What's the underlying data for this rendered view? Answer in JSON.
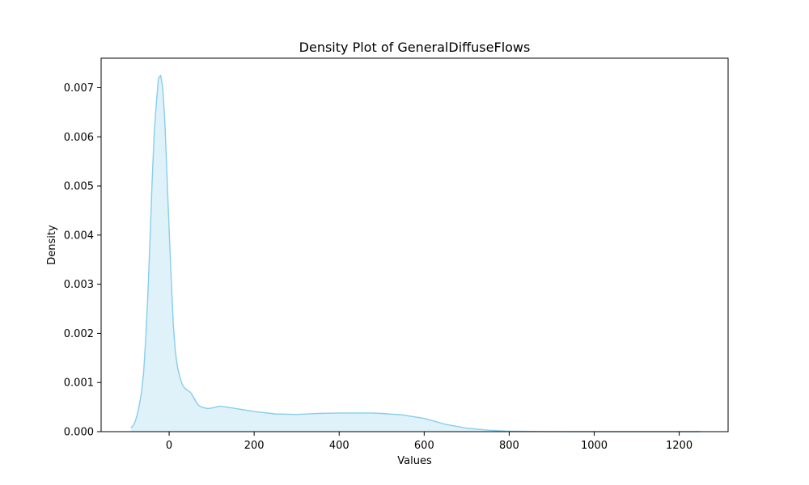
{
  "chart_data": {
    "type": "area",
    "title": "Density Plot of GeneralDiffuseFlows",
    "xlabel": "Values",
    "ylabel": "Density",
    "xlim": [
      -160,
      1315
    ],
    "ylim": [
      0,
      0.0076
    ],
    "x_ticks": [
      0,
      200,
      400,
      600,
      800,
      1000,
      1200
    ],
    "x_tick_labels": [
      "0",
      "200",
      "400",
      "600",
      "800",
      "1000",
      "1200"
    ],
    "y_ticks": [
      0,
      0.001,
      0.002,
      0.003,
      0.004,
      0.005,
      0.006,
      0.007
    ],
    "y_tick_labels": [
      "0.000",
      "0.001",
      "0.002",
      "0.003",
      "0.004",
      "0.005",
      "0.006",
      "0.007"
    ],
    "grid": false,
    "colors": {
      "line": "#87ceeb",
      "fill": "#87ceeb"
    },
    "series": [
      {
        "x": [
          -90,
          -85,
          -80,
          -75,
          -70,
          -65,
          -60,
          -55,
          -50,
          -45,
          -40,
          -35,
          -30,
          -25,
          -20,
          -15,
          -10,
          -5,
          0,
          5,
          10,
          15,
          20,
          25,
          30,
          35,
          40,
          45,
          50,
          55,
          60,
          65,
          70,
          80,
          90,
          100,
          110,
          120,
          150,
          200,
          250,
          300,
          350,
          400,
          450,
          475,
          500,
          550,
          600,
          650,
          700,
          750,
          800,
          850,
          875,
          900,
          925,
          950,
          975,
          1000,
          1050,
          1100,
          1150,
          1200,
          1250
        ],
        "y": [
          8e-05,
          0.00012,
          0.0002,
          0.00035,
          0.00055,
          0.0008,
          0.0012,
          0.0019,
          0.0028,
          0.0039,
          0.0051,
          0.0061,
          0.0067,
          0.0072,
          0.00725,
          0.007,
          0.0063,
          0.0052,
          0.0041,
          0.0031,
          0.00215,
          0.0016,
          0.0013,
          0.00112,
          0.00098,
          0.0009,
          0.00086,
          0.00083,
          0.0008,
          0.00074,
          0.00066,
          0.00058,
          0.00053,
          0.00049,
          0.00047,
          0.00048,
          0.0005,
          0.00052,
          0.00048,
          0.00041,
          0.00036,
          0.00035,
          0.00037,
          0.00038,
          0.00038,
          0.00038,
          0.00037,
          0.00034,
          0.00027,
          0.00015,
          7e-05,
          3e-05,
          1e-05,
          5e-06,
          2.5e-06,
          1e-06,
          5e-07,
          0,
          0,
          0,
          0,
          0,
          0,
          0,
          0
        ]
      }
    ]
  }
}
